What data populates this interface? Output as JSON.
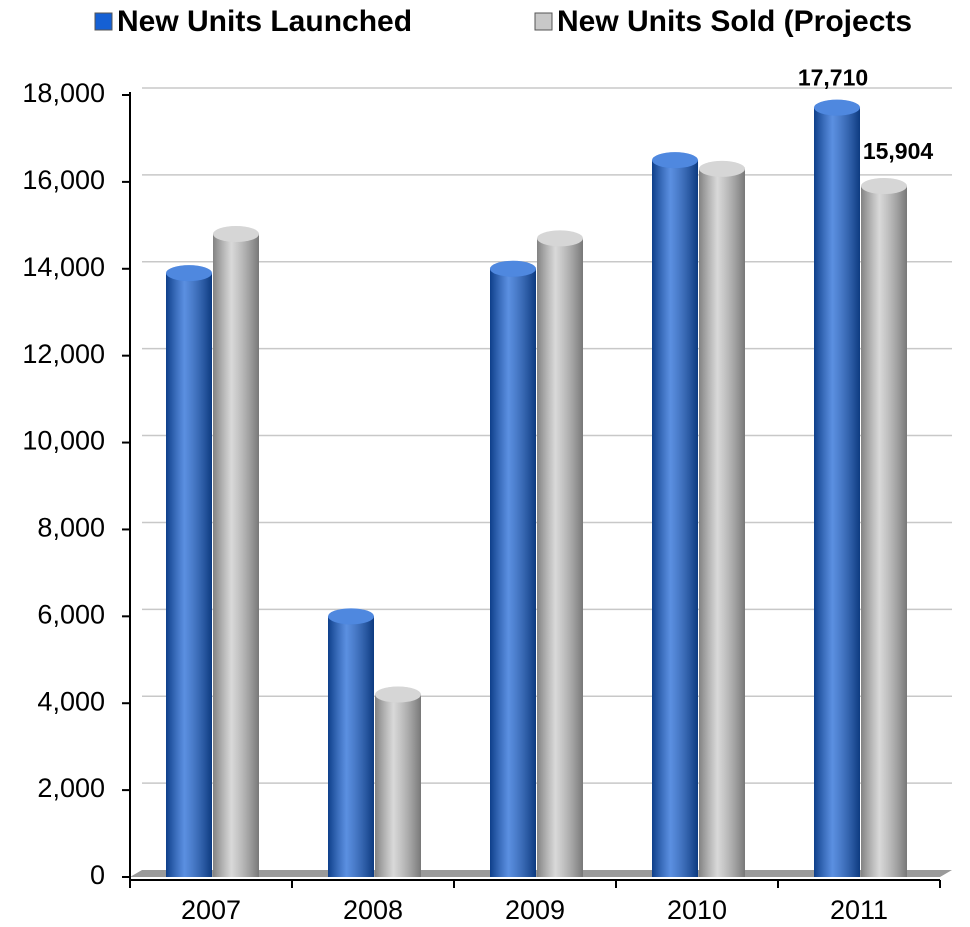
{
  "chart_data": {
    "type": "bar",
    "categories": [
      "2007",
      "2008",
      "2009",
      "2010",
      "2011"
    ],
    "series": [
      {
        "name": "New Units Launched",
        "color": "#1560d4",
        "values": [
          13900,
          6000,
          14000,
          16500,
          17710
        ],
        "value_labels": [
          null,
          null,
          null,
          null,
          "17,710"
        ]
      },
      {
        "name": "New Units Sold (Projects",
        "color": "#c8c8c8",
        "values": [
          14800,
          4200,
          14700,
          16300,
          15904
        ],
        "value_labels": [
          null,
          null,
          null,
          null,
          "15,904"
        ]
      }
    ],
    "ylim": [
      0,
      18000
    ],
    "yticks": [
      0,
      {
        "value": 2000,
        "label": "2,000"
      },
      {
        "value": 4000,
        "label": "4,000"
      },
      {
        "value": 6000,
        "label": "6,000"
      },
      {
        "value": 8000,
        "label": "8,000"
      },
      {
        "value": 10000,
        "label": "10,000"
      },
      {
        "value": 12000,
        "label": "12,000"
      },
      {
        "value": 14000,
        "label": "14,000"
      },
      {
        "value": 16000,
        "label": "16,000"
      },
      {
        "value": 18000,
        "label": "18,000"
      }
    ],
    "grid": true,
    "legend": "top"
  }
}
